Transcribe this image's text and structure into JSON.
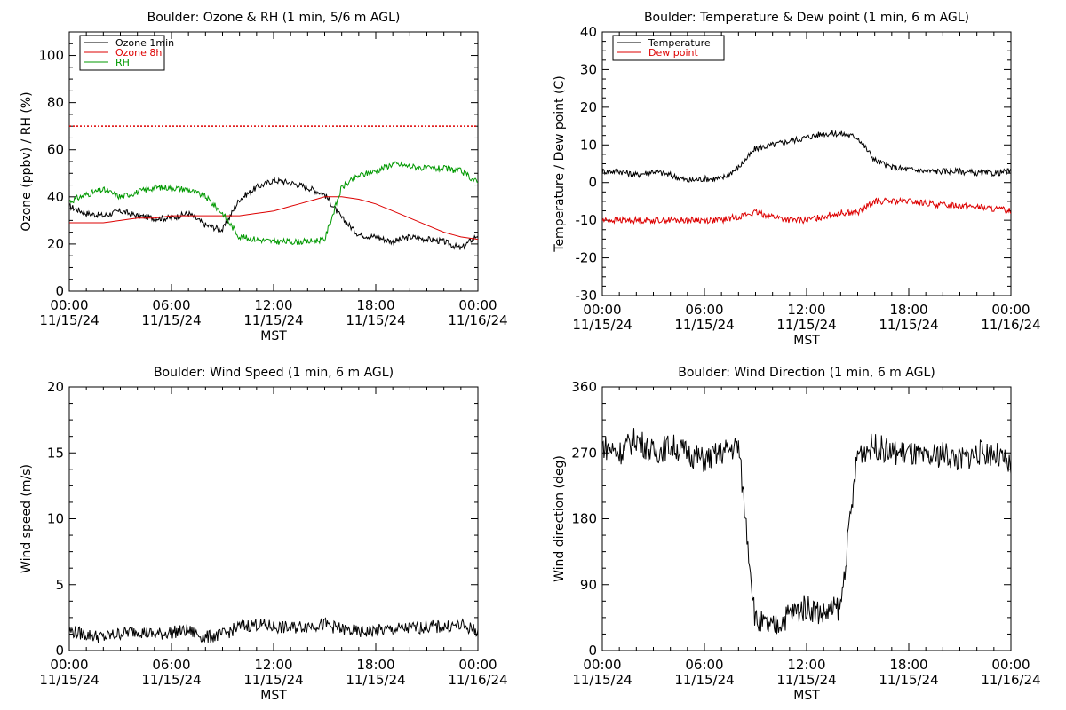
{
  "chart_data": [
    {
      "type": "line",
      "title": "Boulder: Ozone & RH (1 min, 5/6 m AGL)",
      "xlabel": "MST",
      "ylabel": "Ozone (ppbv) / RH (%)",
      "xlim": [
        "11/15/24 00:00",
        "11/16/24 00:00"
      ],
      "ylim": [
        0,
        110
      ],
      "xticks": [
        {
          "time": "00:00",
          "date": "11/15/24"
        },
        {
          "time": "06:00",
          "date": "11/15/24"
        },
        {
          "time": "12:00",
          "date": "11/15/24"
        },
        {
          "time": "18:00",
          "date": "11/15/24"
        },
        {
          "time": "00:00",
          "date": "11/16/24"
        }
      ],
      "yticks": [
        0,
        20,
        40,
        60,
        80,
        100
      ],
      "legend": "top-left",
      "x_hours": [
        0,
        1,
        2,
        3,
        4,
        5,
        6,
        7,
        8,
        9,
        10,
        11,
        12,
        13,
        14,
        15,
        16,
        17,
        18,
        19,
        20,
        21,
        22,
        23,
        24
      ],
      "series": [
        {
          "name": "Ozone 1min",
          "color": "#000000",
          "values": [
            36,
            33,
            32,
            34,
            32,
            31,
            31,
            33,
            28,
            26,
            39,
            44,
            47,
            46,
            44,
            41,
            31,
            24,
            23,
            21,
            23,
            22,
            21,
            18,
            24
          ]
        },
        {
          "name": "Ozone 8h",
          "color": "#dd0000",
          "values": [
            29,
            29,
            29,
            30,
            31,
            31,
            32,
            32,
            32,
            32,
            32,
            33,
            34,
            36,
            38,
            40,
            40,
            39,
            37,
            34,
            31,
            28,
            25,
            23,
            22
          ]
        },
        {
          "name": "RH",
          "color": "#009900",
          "values": [
            38,
            41,
            43,
            40,
            42,
            44,
            44,
            43,
            40,
            33,
            23,
            22,
            21,
            21,
            21,
            22,
            44,
            49,
            51,
            54,
            53,
            52,
            52,
            51,
            46
          ]
        }
      ],
      "reference_line": {
        "value": 70,
        "color": "#dd0000",
        "style": "dotted"
      }
    },
    {
      "type": "line",
      "title": "Boulder: Temperature & Dew point (1 min, 6 m AGL)",
      "xlabel": "MST",
      "ylabel": "Temperature / Dew point (C)",
      "xlim": [
        "11/15/24 00:00",
        "11/16/24 00:00"
      ],
      "ylim": [
        -30,
        40
      ],
      "xticks": [
        {
          "time": "00:00",
          "date": "11/15/24"
        },
        {
          "time": "06:00",
          "date": "11/15/24"
        },
        {
          "time": "12:00",
          "date": "11/15/24"
        },
        {
          "time": "18:00",
          "date": "11/15/24"
        },
        {
          "time": "00:00",
          "date": "11/16/24"
        }
      ],
      "yticks": [
        -30,
        -20,
        -10,
        0,
        10,
        20,
        30,
        40
      ],
      "legend": "top-left",
      "x_hours": [
        0,
        1,
        2,
        3,
        4,
        5,
        6,
        7,
        8,
        9,
        10,
        11,
        12,
        13,
        14,
        15,
        16,
        17,
        18,
        19,
        20,
        21,
        22,
        23,
        24
      ],
      "series": [
        {
          "name": "Temperature",
          "color": "#000000",
          "values": [
            3,
            3,
            2,
            3,
            2,
            0.5,
            1,
            1,
            4,
            9,
            10,
            11,
            12,
            13,
            13,
            12,
            6,
            4,
            3.5,
            3,
            3,
            3,
            2.5,
            2.5,
            3
          ]
        },
        {
          "name": "Dew point",
          "color": "#dd0000",
          "values": [
            -10,
            -10,
            -10,
            -10,
            -10,
            -10,
            -10,
            -10,
            -9,
            -8,
            -9,
            -10,
            -10,
            -9,
            -8,
            -8,
            -5,
            -5,
            -5,
            -5.5,
            -6,
            -6,
            -6.5,
            -7,
            -7.5
          ]
        }
      ]
    },
    {
      "type": "line",
      "title": "Boulder: Wind Speed (1 min, 6 m AGL)",
      "xlabel": "MST",
      "ylabel": "Wind speed (m/s)",
      "xlim": [
        "11/15/24 00:00",
        "11/16/24 00:00"
      ],
      "ylim": [
        0,
        20
      ],
      "xticks": [
        {
          "time": "00:00",
          "date": "11/15/24"
        },
        {
          "time": "06:00",
          "date": "11/15/24"
        },
        {
          "time": "12:00",
          "date": "11/15/24"
        },
        {
          "time": "18:00",
          "date": "11/15/24"
        },
        {
          "time": "00:00",
          "date": "11/16/24"
        }
      ],
      "yticks": [
        0,
        5,
        10,
        15,
        20
      ],
      "legend": "none",
      "x_hours": [
        0,
        1,
        2,
        3,
        4,
        5,
        6,
        7,
        8,
        9,
        10,
        11,
        12,
        13,
        14,
        15,
        16,
        17,
        18,
        19,
        20,
        21,
        22,
        23,
        24
      ],
      "series": [
        {
          "color": "#000000",
          "values": [
            1.5,
            1.2,
            1.0,
            1.3,
            1.5,
            1.2,
            1.4,
            1.5,
            1.0,
            1.2,
            1.8,
            2.0,
            1.8,
            1.7,
            1.9,
            2.0,
            1.6,
            1.4,
            1.5,
            1.6,
            1.7,
            1.8,
            1.8,
            1.9,
            1.5
          ]
        }
      ]
    },
    {
      "type": "line",
      "title": "Boulder: Wind Direction (1 min, 6 m AGL)",
      "xlabel": "MST",
      "ylabel": "Wind direction (deg)",
      "xlim": [
        "11/15/24 00:00",
        "11/16/24 00:00"
      ],
      "ylim": [
        0,
        360
      ],
      "xticks": [
        {
          "time": "00:00",
          "date": "11/15/24"
        },
        {
          "time": "06:00",
          "date": "11/15/24"
        },
        {
          "time": "12:00",
          "date": "11/15/24"
        },
        {
          "time": "18:00",
          "date": "11/15/24"
        },
        {
          "time": "00:00",
          "date": "11/16/24"
        }
      ],
      "yticks": [
        0,
        90,
        180,
        270,
        360
      ],
      "legend": "none",
      "x_hours": [
        0,
        1,
        2,
        3,
        4,
        5,
        6,
        7,
        8,
        9,
        10,
        11,
        12,
        13,
        14,
        15,
        16,
        17,
        18,
        19,
        20,
        21,
        22,
        23,
        24
      ],
      "series": [
        {
          "color": "#000000",
          "values": [
            280,
            270,
            290,
            270,
            280,
            270,
            260,
            270,
            280,
            40,
            30,
            50,
            60,
            50,
            60,
            270,
            280,
            270,
            270,
            260,
            270,
            260,
            270,
            270,
            250
          ]
        }
      ]
    }
  ]
}
